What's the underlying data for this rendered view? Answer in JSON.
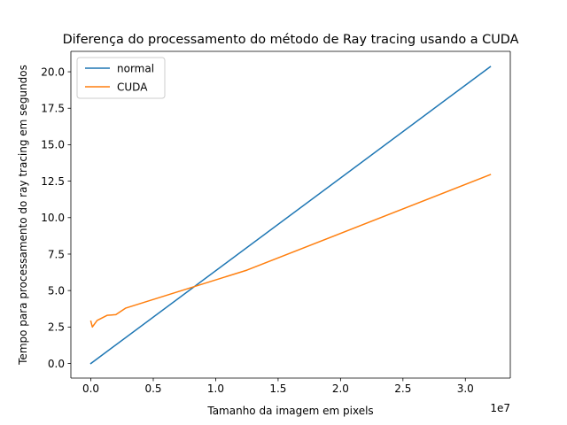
{
  "chart_data": {
    "type": "line",
    "title": "Diferença do processamento do método de Ray tracing usando a CUDA",
    "xlabel": "Tamanho da imagem em pixels",
    "ylabel": "Tempo para processamento do ray tracing em segundos",
    "x_offset_label": "1e7",
    "xlim": [
      -1600000,
      33600000
    ],
    "ylim": [
      -1.0,
      21.4
    ],
    "x_ticks": [
      0,
      5000000,
      10000000,
      15000000,
      20000000,
      25000000,
      30000000
    ],
    "x_tick_labels": [
      "0.0",
      "0.5",
      "1.0",
      "1.5",
      "2.0",
      "2.5",
      "3.0"
    ],
    "y_ticks": [
      0,
      2.5,
      5,
      7.5,
      10,
      12.5,
      15,
      17.5,
      20
    ],
    "y_tick_labels": [
      "0.0",
      "2.5",
      "5.0",
      "7.5",
      "10.0",
      "12.5",
      "15.0",
      "17.5",
      "20.0"
    ],
    "grid": false,
    "legend_position": "top-left",
    "series": [
      {
        "name": "normal",
        "color": "#1f77b4",
        "x": [
          0,
          32000000
        ],
        "y": [
          0.0,
          20.35
        ]
      },
      {
        "name": "CUDA",
        "color": "#ff7f0e",
        "x": [
          0,
          120000,
          500000,
          1300000,
          2000000,
          2800000,
          12500000,
          32000000
        ],
        "y": [
          2.9,
          2.5,
          2.95,
          3.3,
          3.35,
          3.8,
          6.4,
          12.95
        ]
      }
    ]
  }
}
